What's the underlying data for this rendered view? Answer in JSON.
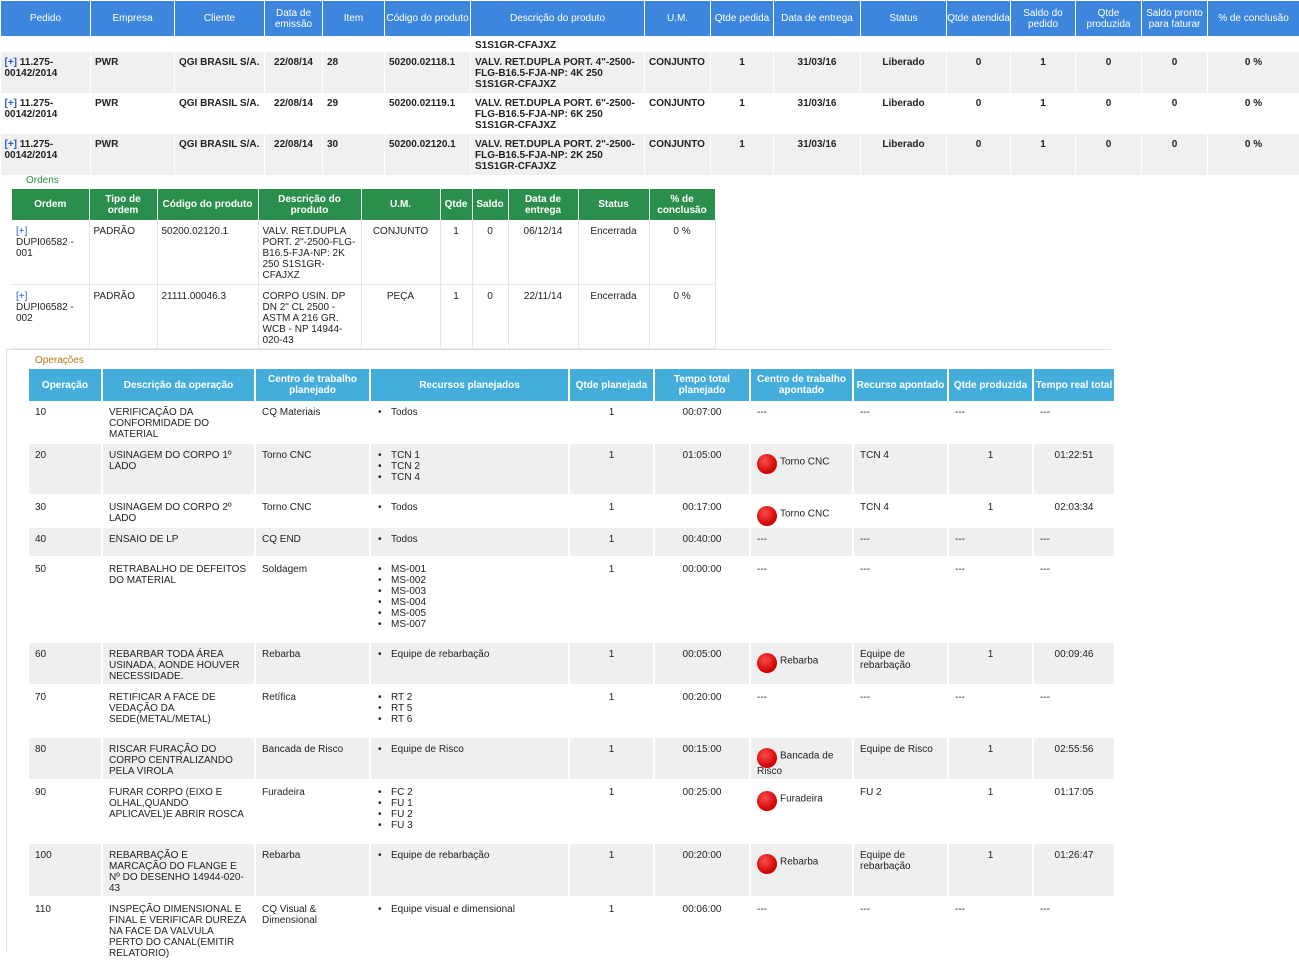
{
  "top": {
    "headers": [
      "Pedido",
      "Empresa",
      "Cliente",
      "Data de emissão",
      "Item",
      "Código do produto",
      "Descrição do produto",
      "U.M.",
      "Qtde pedida",
      "Data de entrega",
      "Status",
      "Qtde atendida",
      "Saldo do pedido",
      "Qtde produzida",
      "Saldo pronto para faturar",
      "% de conclusão"
    ],
    "prev_desc_tail": "S1S1GR-CFAJXZ",
    "rows": [
      {
        "expand": "[+]",
        "pedido": "11.275-00142/2014",
        "empresa": "PWR",
        "cliente": "QGI BRASIL S/A.",
        "data": "22/08/14",
        "item": "28",
        "codigo": "50200.02118.1",
        "descricao": "VALV. RET.DUPLA PORT. 4\"-2500-FLG-B16.5-FJA-NP: 4K 250 S1S1GR-CFAJXZ",
        "um": "CONJUNTO",
        "qtde": "1",
        "entrega": "31/03/16",
        "status": "Liberado",
        "atendida": "0",
        "saldo": "1",
        "produzida": "0",
        "pronto": "0",
        "conclusao": "0 %"
      },
      {
        "expand": "[+]",
        "pedido": "11.275-00142/2014",
        "empresa": "PWR",
        "cliente": "QGI BRASIL S/A.",
        "data": "22/08/14",
        "item": "29",
        "codigo": "50200.02119.1",
        "descricao": "VALV. RET.DUPLA PORT. 6\"-2500-FLG-B16.5-FJA-NP: 6K 250 S1S1GR-CFAJXZ",
        "um": "CONJUNTO",
        "qtde": "1",
        "entrega": "31/03/16",
        "status": "Liberado",
        "atendida": "0",
        "saldo": "1",
        "produzida": "0",
        "pronto": "0",
        "conclusao": "0 %"
      },
      {
        "expand": "[+]",
        "pedido": "11.275-00142/2014",
        "empresa": "PWR",
        "cliente": "QGI BRASIL S/A.",
        "data": "22/08/14",
        "item": "30",
        "codigo": "50200.02120.1",
        "descricao": "VALV. RET.DUPLA PORT. 2\"-2500-FLG-B16.5-FJA-NP: 2K 250 S1S1GR-CFAJXZ",
        "um": "CONJUNTO",
        "qtde": "1",
        "entrega": "31/03/16",
        "status": "Liberado",
        "atendida": "0",
        "saldo": "1",
        "produzida": "0",
        "pronto": "0",
        "conclusao": "0 %"
      }
    ]
  },
  "orders": {
    "label": "Ordens",
    "headers": [
      "Ordem",
      "Tipo de ordem",
      "Código do produto",
      "Descrição do produto",
      "U.M.",
      "Qtde",
      "Saldo",
      "Data de entrega",
      "Status",
      "% de conclusão"
    ],
    "rows": [
      {
        "expand": "[+]",
        "ordem": "DUPI06582 - 001",
        "tipo": "PADRÃO",
        "codigo": "50200.02120.1",
        "descricao": "VALV. RET.DUPLA PORT. 2\"-2500-FLG-B16.5-FJA-NP: 2K 250 S1S1GR-CFAJXZ",
        "um": "CONJUNTO",
        "qtde": "1",
        "saldo": "0",
        "entrega": "06/12/14",
        "status": "Encerrada",
        "conclusao": "0 %"
      },
      {
        "expand": "[+]",
        "ordem": "DUPI06582 - 002",
        "tipo": "PADRÃO",
        "codigo": "21111.00046.3",
        "descricao": "CORPO USIN. DP DN 2\" CL 2500 - ASTM A 216 GR. WCB - NP 14944-020-43",
        "um": "PEÇA",
        "qtde": "1",
        "saldo": "0",
        "entrega": "22/11/14",
        "status": "Encerrada",
        "conclusao": "0 %"
      }
    ]
  },
  "operations": {
    "label": "Operações",
    "headers": [
      "Operação",
      "Descrição da operação",
      "Centro de trabalho planejado",
      "Recursos planejados",
      "Qtde planejada",
      "Tempo total planejado",
      "Centro de trabalho apontado",
      "Recurso apontado",
      "Qtde produzida",
      "Tempo real total"
    ],
    "rows": [
      {
        "op": "10",
        "desc": "VERIFICAÇÃO DA CONFORMIDADE DO MATERIAL",
        "centro": "CQ Materiais",
        "recursos": [
          "Todos"
        ],
        "qtde": "1",
        "tempo": "00:07:00",
        "status_dot": false,
        "centro_apont": "---",
        "recurso_apont": "---",
        "qtde_prod": "---",
        "tempo_real": "---"
      },
      {
        "op": "20",
        "desc": "USINAGEM DO CORPO 1º LADO",
        "centro": "Torno CNC",
        "recursos": [
          "TCN 1",
          "TCN 2",
          "TCN 4"
        ],
        "qtde": "1",
        "tempo": "01:05:00",
        "status_dot": true,
        "centro_apont": "Torno CNC",
        "recurso_apont": "TCN 4",
        "qtde_prod": "1",
        "tempo_real": "01:22:51"
      },
      {
        "op": "30",
        "desc": "USINAGEM DO CORPO 2º LADO",
        "centro": "Torno CNC",
        "recursos": [
          "Todos"
        ],
        "qtde": "1",
        "tempo": "00:17:00",
        "status_dot": true,
        "centro_apont": "Torno CNC",
        "recurso_apont": "TCN 4",
        "qtde_prod": "1",
        "tempo_real": "02:03:34"
      },
      {
        "op": "40",
        "desc": "ENSAIO DE LP",
        "centro": "CQ END",
        "recursos": [
          "Todos"
        ],
        "qtde": "1",
        "tempo": "00:40:00",
        "status_dot": false,
        "centro_apont": "---",
        "recurso_apont": "---",
        "qtde_prod": "---",
        "tempo_real": "---"
      },
      {
        "op": "50",
        "desc": "RETRABALHO DE DEFEITOS DO MATERIAL",
        "centro": "Soldagem",
        "recursos": [
          "MS-001",
          "MS-002",
          "MS-003",
          "MS-004",
          "MS-005",
          "MS-007"
        ],
        "qtde": "1",
        "tempo": "00:00:00",
        "status_dot": false,
        "centro_apont": "---",
        "recurso_apont": "---",
        "qtde_prod": "---",
        "tempo_real": "---"
      },
      {
        "op": "60",
        "desc": "REBARBAR TODA ÁREA USINADA, AONDE HOUVER NECESSIDADE.",
        "centro": "Rebarba",
        "recursos": [
          "Equipe de rebarbação"
        ],
        "qtde": "1",
        "tempo": "00:05:00",
        "status_dot": true,
        "centro_apont": "Rebarba",
        "recurso_apont": "Equipe de rebarbação",
        "qtde_prod": "1",
        "tempo_real": "00:09:46"
      },
      {
        "op": "70",
        "desc": "RETIFICAR A FACE DE VEDAÇÃO DA SEDE(METAL/METAL)",
        "centro": "Retífica",
        "recursos": [
          "RT 2",
          "RT 5",
          "RT 6"
        ],
        "qtde": "1",
        "tempo": "00:20:00",
        "status_dot": false,
        "centro_apont": "---",
        "recurso_apont": "---",
        "qtde_prod": "---",
        "tempo_real": "---"
      },
      {
        "op": "80",
        "desc": "RISCAR FURAÇÃO DO CORPO CENTRALIZANDO PELA VIROLA",
        "centro": "Bancada de Risco",
        "recursos": [
          "Equipe de Risco"
        ],
        "qtde": "1",
        "tempo": "00:15:00",
        "status_dot": true,
        "centro_apont": "Bancada de Risco",
        "recurso_apont": "Equipe de Risco",
        "qtde_prod": "1",
        "tempo_real": "02:55:56"
      },
      {
        "op": "90",
        "desc": "FURAR CORPO (EIXO E OLHAL,QUANDO APLICAVEL)E ABRIR ROSCA",
        "centro": "Furadeira",
        "recursos": [
          "FC 2",
          "FU 1",
          "FU 2",
          "FU 3"
        ],
        "qtde": "1",
        "tempo": "00:25:00",
        "status_dot": true,
        "centro_apont": "Furadeira",
        "recurso_apont": "FU 2",
        "qtde_prod": "1",
        "tempo_real": "01:17:05"
      },
      {
        "op": "100",
        "desc": "REBARBAÇÃO E MARCAÇÃO DO FLANGE E Nº DO DESENHO 14944-020-43",
        "centro": "Rebarba",
        "recursos": [
          "Equipe de rebarbação"
        ],
        "qtde": "1",
        "tempo": "00:20:00",
        "status_dot": true,
        "centro_apont": "Rebarba",
        "recurso_apont": "Equipe de rebarbação",
        "qtde_prod": "1",
        "tempo_real": "01:26:47"
      },
      {
        "op": "110",
        "desc": "INSPEÇÃO DIMENSIONAL E FINAL E VERIFICAR DUREZA NA FACE DA VALVULA PERTO DO CANAL(EMITIR RELATORIO)",
        "centro": "CQ Visual & Dimensional",
        "recursos": [
          "Equipe visual e dimensional"
        ],
        "qtde": "1",
        "tempo": "00:06:00",
        "status_dot": false,
        "centro_apont": "---",
        "recurso_apont": "---",
        "qtde_prod": "---",
        "tempo_real": "---"
      }
    ]
  },
  "colors": {
    "top_header": "#3d86dd",
    "orders_header": "#2a8e4d",
    "ops_header": "#44addb",
    "status_dot": "#cc0000",
    "section_label": "#2a8e4d",
    "ops_label": "#b07a1a"
  }
}
